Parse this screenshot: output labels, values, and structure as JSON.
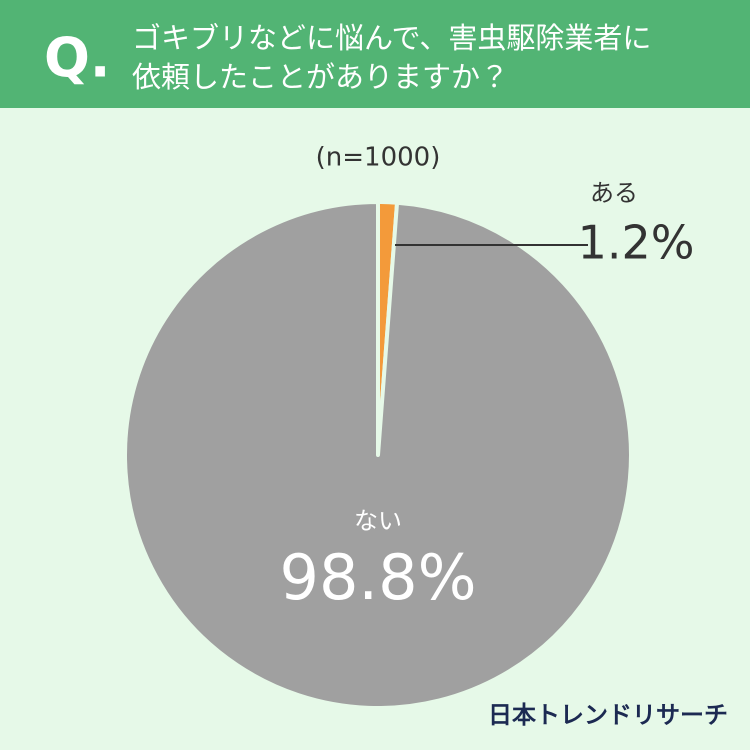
{
  "chart_data": {
    "type": "pie",
    "badge": "Q.",
    "title": [
      "ゴキブリなどに悩んで、害虫駆除業者に",
      "依頼したことがありますか？"
    ],
    "subtitle": "(n=1000)",
    "categories": [
      "ある",
      "ない"
    ],
    "values": [
      1.2,
      98.8
    ],
    "value_labels": [
      "1.2%",
      "98.8%"
    ],
    "colors": [
      "#f39a3a",
      "#a0a0a0"
    ],
    "source": "日本トレンドリサーチ"
  }
}
